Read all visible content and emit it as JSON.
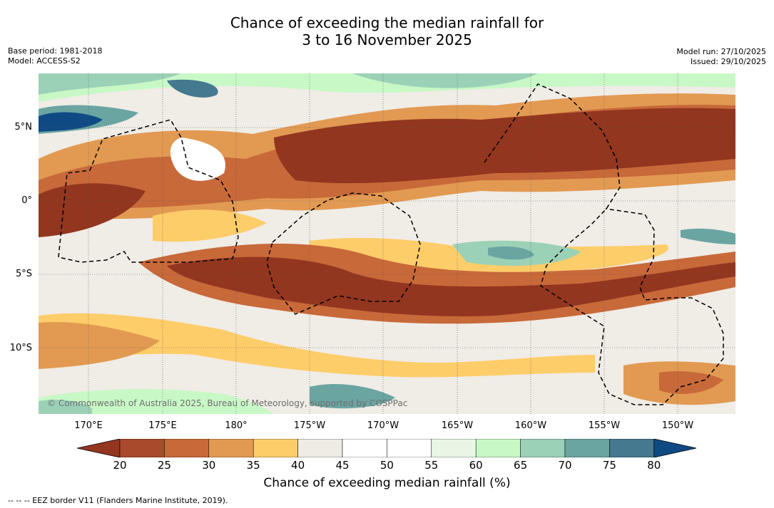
{
  "title": {
    "line1": "Chance of exceeding the median rainfall for",
    "line2": "3 to 16 November 2025"
  },
  "meta": {
    "base_period": "Base period: 1981-2018",
    "model": "Model: ACCESS-S2",
    "model_run": "Model run: 27/10/2025",
    "issued": "Issued: 29/10/2025"
  },
  "map": {
    "lat_labels": [
      "5°N",
      "0°",
      "5°S",
      "10°S"
    ],
    "lon_labels": [
      "170°E",
      "175°E",
      "180°",
      "175°W",
      "170°W",
      "165°W",
      "160°W",
      "155°W",
      "150°W"
    ],
    "copyright": "© Commonwealth of Australia 2025, Bureau of Meteorology, supported by COSPPac"
  },
  "colorbar": {
    "ticks": [
      "20",
      "25",
      "30",
      "35",
      "40",
      "45",
      "50",
      "55",
      "60",
      "65",
      "70",
      "75",
      "80"
    ],
    "colors": [
      "#a84a2b",
      "#c8693a",
      "#e29a52",
      "#fdcd6a",
      "#efebe5",
      "#ffffff",
      "#ffffff",
      "#e9f6e6",
      "#c9f8c7",
      "#9bd1b7",
      "#6ba5a2",
      "#44798f"
    ],
    "low_color": "#93361f",
    "high_color": "#104a85",
    "label": "Chance of exceeding median rainfall (%)"
  },
  "footer": "--  --  -- EEZ border V11 (Flanders Marine Institute, 2019)."
}
